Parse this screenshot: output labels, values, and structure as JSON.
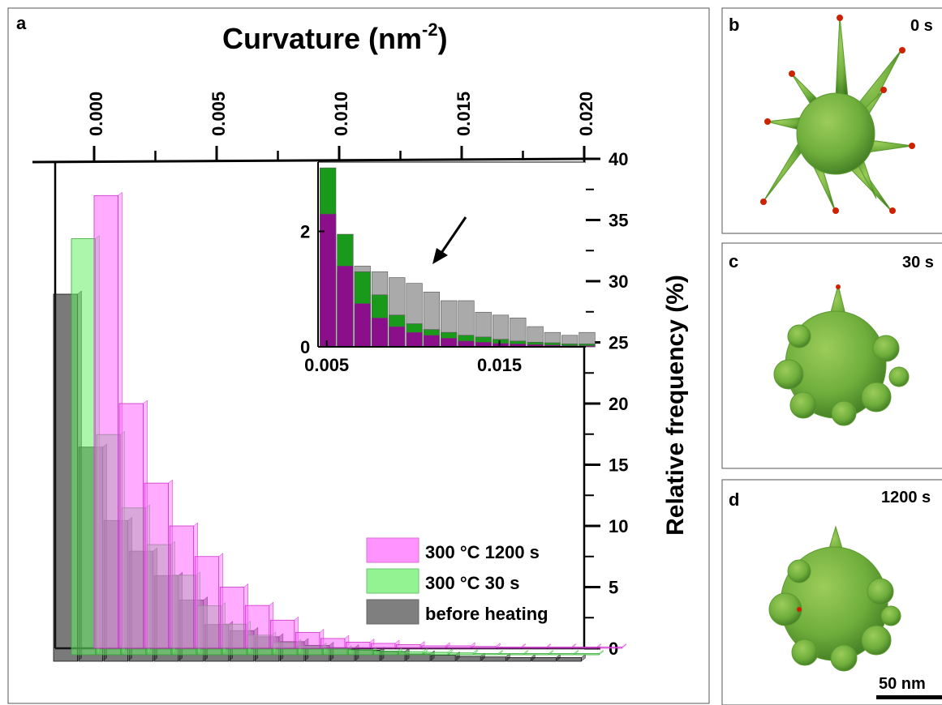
{
  "panels": {
    "a": {
      "letter": "a",
      "title_text": "Curvature (nm",
      "title_exp": "-2",
      "title_close": ")",
      "top_ticks": [
        "0.000",
        "0.005",
        "0.010",
        "0.015",
        "0.020"
      ],
      "ylabel": "Relative frequency (%)",
      "y_ticks": [
        "0",
        "5",
        "10",
        "15",
        "20",
        "25",
        "30",
        "35",
        "40"
      ],
      "legend": [
        "300 °C 1200 s",
        "300 °C 30 s",
        "before heating"
      ],
      "inset": {
        "y_ticks": [
          "0",
          "2"
        ],
        "x_ticks": [
          "0.005",
          "0.015"
        ]
      }
    },
    "b": {
      "letter": "b",
      "time": "0 s"
    },
    "c": {
      "letter": "c",
      "time": "30 s"
    },
    "d": {
      "letter": "d",
      "time": "1200 s",
      "scale_bar": "50 nm"
    }
  },
  "colors": {
    "s1200": "#ff55ff",
    "s30": "#55ee55",
    "s0": "#666666",
    "inset_purple": "#8b0f8b",
    "inset_green": "#1a9a1a",
    "inset_gray": "#aaaaaa",
    "particle": "#6fae3c"
  },
  "chart_data": {
    "type": "bar",
    "title": "Curvature (nm-2)",
    "xlabel": "Curvature (nm-2)",
    "ylabel": "Relative frequency (%)",
    "xlim": [
      0.0,
      0.02
    ],
    "ylim": [
      0,
      40
    ],
    "bin_width": 0.001,
    "x": [
      0.0,
      0.001,
      0.002,
      0.003,
      0.004,
      0.005,
      0.006,
      0.007,
      0.008,
      0.009,
      0.01,
      0.011,
      0.012,
      0.013,
      0.014,
      0.015,
      0.016,
      0.017,
      0.018,
      0.019,
      0.02
    ],
    "series": [
      {
        "name": "300 °C 1200 s",
        "values": [
          37,
          20,
          13.5,
          10,
          7.5,
          5,
          3.5,
          2.3,
          1.3,
          0.8,
          0.5,
          0.4,
          0.3,
          0.2,
          0.2,
          0.15,
          0.1,
          0.1,
          0.1,
          0.1,
          0.1
        ]
      },
      {
        "name": "300 °C 30 s",
        "values": [
          34,
          18,
          12,
          9,
          6.5,
          4,
          2.5,
          1.6,
          1.0,
          0.7,
          0.5,
          0.4,
          0.3,
          0.25,
          0.2,
          0.15,
          0.1,
          0.1,
          0.1,
          0.1,
          0.1
        ]
      },
      {
        "name": "before heating",
        "values": [
          30,
          17.5,
          11.5,
          9,
          7,
          5,
          3,
          2.5,
          2.0,
          1.6,
          1.3,
          1.1,
          0.9,
          0.8,
          0.6,
          0.5,
          0.4,
          0.35,
          0.3,
          0.3,
          0.3
        ]
      }
    ],
    "inset": {
      "type": "bar",
      "xlim": [
        0.005,
        0.02
      ],
      "ylim": [
        0,
        3.2
      ],
      "x": [
        0.005,
        0.006,
        0.007,
        0.008,
        0.009,
        0.01,
        0.011,
        0.012,
        0.013,
        0.014,
        0.015,
        0.016,
        0.017,
        0.018,
        0.019,
        0.02
      ],
      "series": [
        {
          "name": "300 °C 1200 s",
          "values": [
            2.3,
            1.4,
            0.75,
            0.5,
            0.35,
            0.25,
            0.2,
            0.15,
            0.1,
            0.08,
            0.06,
            0.05,
            0.04,
            0.03,
            0.02,
            0.02
          ]
        },
        {
          "name": "300 °C 30 s",
          "values": [
            3.1,
            1.95,
            1.3,
            0.9,
            0.55,
            0.4,
            0.3,
            0.25,
            0.2,
            0.17,
            0.13,
            0.1,
            0.08,
            0.07,
            0.05,
            0.05
          ]
        },
        {
          "name": "before heating",
          "values": [
            1.5,
            1.3,
            1.4,
            1.3,
            1.2,
            1.1,
            0.95,
            0.8,
            0.8,
            0.6,
            0.55,
            0.5,
            0.35,
            0.25,
            0.2,
            0.25
          ]
        }
      ]
    }
  }
}
